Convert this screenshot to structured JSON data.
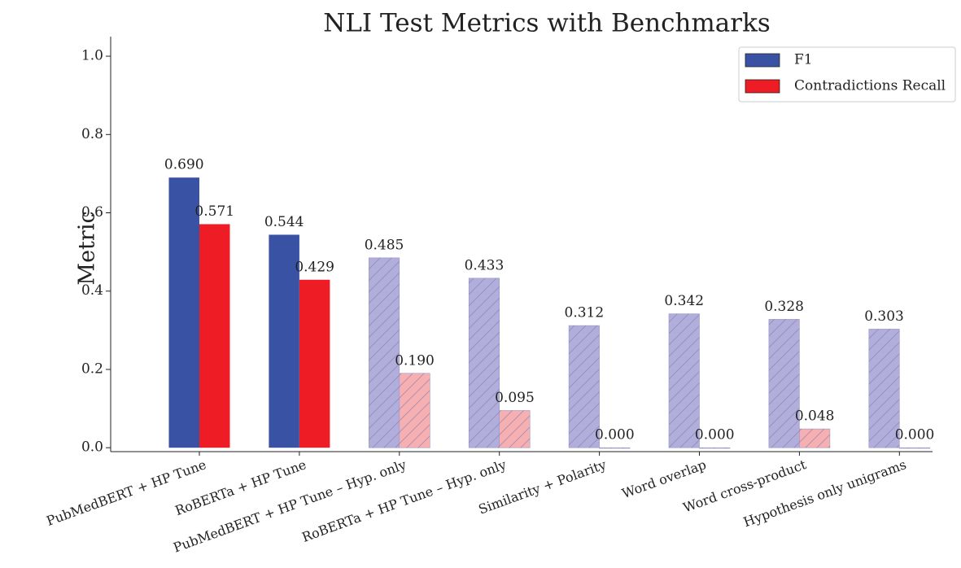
{
  "chart_data": {
    "type": "bar",
    "title": "NLI Test Metrics with Benchmarks",
    "ylabel": "Metric",
    "categories": [
      "PubMedBERT + HP Tune",
      "RoBERTa + HP Tune",
      "PubMedBERT + HP Tune – Hyp. only",
      "RoBERTa + HP Tune – Hyp. only",
      "Similarity + Polarity",
      "Word overlap",
      "Word cross-product",
      "Hypothesis only unigrams"
    ],
    "hatched": [
      false,
      false,
      true,
      true,
      true,
      true,
      true,
      true
    ],
    "series": [
      {
        "name": "F1",
        "color": "#3a52a4",
        "colors": [
          "#3a52a4",
          "#3a52a4",
          "#b1aedb",
          "#b1aedb",
          "#b1aedb",
          "#b1aedb",
          "#b1aedb",
          "#b1aedb"
        ],
        "values": [
          0.69,
          0.544,
          0.485,
          0.433,
          0.312,
          0.342,
          0.328,
          0.303
        ],
        "value_labels": [
          "0.690",
          "0.544",
          "0.485",
          "0.433",
          "0.312",
          "0.342",
          "0.328",
          "0.303"
        ]
      },
      {
        "name": "Contradictions Recall",
        "color": "#ee1c25",
        "colors": [
          "#ee1c25",
          "#ee1c25",
          "#f6b0b2",
          "#f6b0b2",
          "#f6b0b2",
          "#f6b0b2",
          "#f6b0b2",
          "#f6b0b2"
        ],
        "values": [
          0.571,
          0.429,
          0.19,
          0.095,
          0.0,
          0.0,
          0.048,
          0.0
        ],
        "value_labels": [
          "0.571",
          "0.429",
          "0.190",
          "0.095",
          "0.000",
          "0.000",
          "0.048",
          "0.000"
        ]
      }
    ],
    "ylim": [
      -0.01,
      1.05
    ],
    "yticks": [
      {
        "value": 0,
        "label": "0.0"
      },
      0.2,
      0.4,
      0.6,
      0.8,
      {
        "value": 1,
        "label": "1.0"
      }
    ],
    "legend": "upper right"
  }
}
